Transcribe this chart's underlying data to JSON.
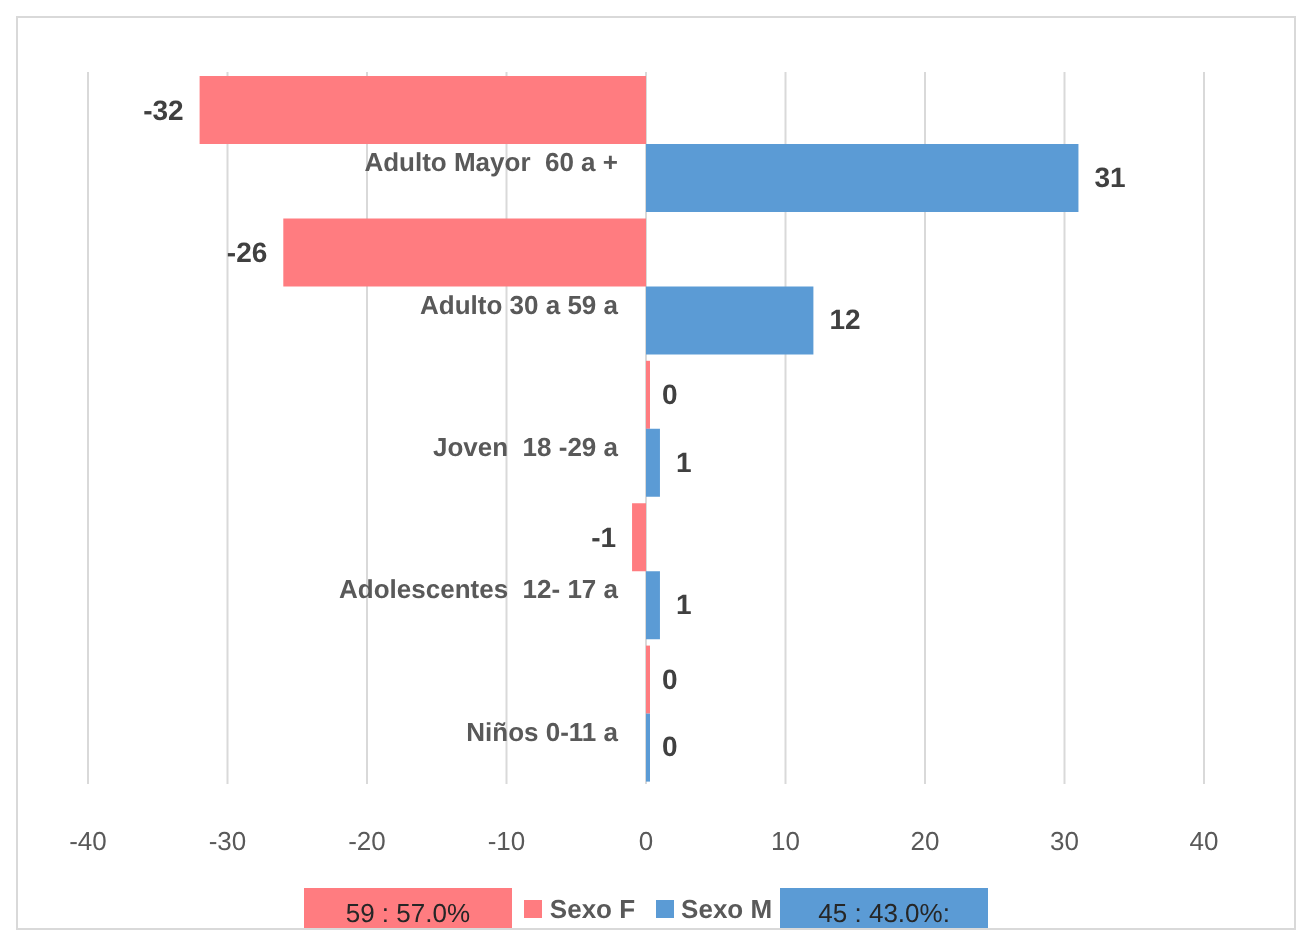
{
  "chart_data": {
    "type": "bar",
    "orientation": "horizontal",
    "categories": [
      "Adulto Mayor  60 a +",
      "Adulto 30 a 59 a",
      "Joven  18 -29 a",
      "Adolescentes  12- 17 a",
      "Niños 0-11 a"
    ],
    "series": [
      {
        "name": "Sexo F",
        "color": "#ff7c80",
        "values": [
          -32,
          -26,
          0,
          -1,
          0
        ]
      },
      {
        "name": "Sexo M",
        "color": "#5b9bd5",
        "values": [
          31,
          12,
          1,
          1,
          0
        ]
      }
    ],
    "xlim": [
      -40,
      40
    ],
    "xticks": [
      -40,
      -30,
      -20,
      -10,
      0,
      10,
      20,
      30,
      40
    ],
    "grid": "x",
    "legend": "bottom",
    "data_labels": true,
    "annotations": [
      "59 : 57.0%",
      "45 : 43.0%:"
    ]
  }
}
